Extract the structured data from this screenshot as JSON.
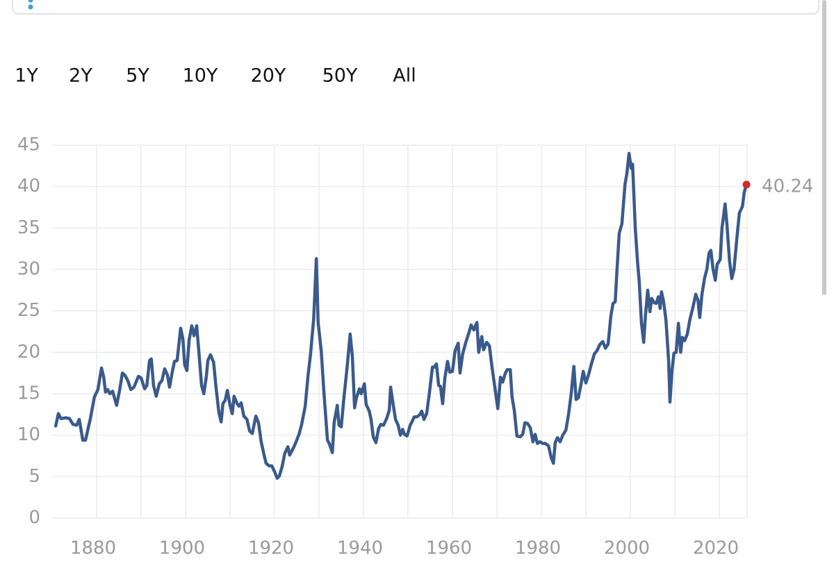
{
  "range_buttons": [
    "1Y",
    "2Y",
    "5Y",
    "10Y",
    "20Y",
    "50Y",
    "All"
  ],
  "chart_data": {
    "type": "line",
    "color": "#3a5a8c",
    "end_marker_color": "#d42a2a",
    "grid": true,
    "xlim": [
      1870,
      2026.25
    ],
    "ylim": [
      0,
      45
    ],
    "xticks": [
      1880,
      1900,
      1920,
      1940,
      1960,
      1980,
      2000,
      2020
    ],
    "x_minor_ticks": [
      1890,
      1910,
      1930,
      1950,
      1970,
      1990,
      2010
    ],
    "yticks": [
      0,
      5,
      10,
      15,
      20,
      25,
      30,
      35,
      40,
      45
    ],
    "x": [
      1870.8,
      1871.4,
      1872.0,
      1873.1,
      1873.9,
      1874.7,
      1875.5,
      1876.1,
      1876.9,
      1877.5,
      1878.6,
      1879.5,
      1880.3,
      1881.1,
      1881.6,
      1882.0,
      1882.5,
      1883.0,
      1883.6,
      1884.5,
      1885.2,
      1885.8,
      1886.4,
      1887.0,
      1887.7,
      1888.4,
      1889.4,
      1890.0,
      1890.8,
      1891.3,
      1891.9,
      1892.3,
      1892.8,
      1893.4,
      1894.1,
      1894.7,
      1895.3,
      1895.9,
      1896.4,
      1897.0,
      1897.5,
      1898.1,
      1898.9,
      1899.4,
      1899.8,
      1900.3,
      1900.8,
      1901.4,
      1901.9,
      1902.5,
      1903.0,
      1903.6,
      1904.1,
      1904.7,
      1905.0,
      1905.6,
      1906.3,
      1906.9,
      1907.5,
      1908.0,
      1908.4,
      1908.9,
      1909.4,
      1910.0,
      1910.5,
      1910.9,
      1911.6,
      1912.0,
      1912.5,
      1913.1,
      1913.8,
      1914.4,
      1915.0,
      1915.8,
      1916.4,
      1917.0,
      1917.7,
      1918.1,
      1918.8,
      1919.4,
      1920.0,
      1920.6,
      1921.1,
      1921.7,
      1922.3,
      1923.0,
      1923.4,
      1924.1,
      1924.7,
      1925.5,
      1926.1,
      1926.9,
      1927.5,
      1928.1,
      1928.8,
      1929.4,
      1929.8,
      1930.5,
      1931.1,
      1931.9,
      1932.3,
      1933.0,
      1933.4,
      1934.1,
      1934.5,
      1935.0,
      1935.6,
      1936.3,
      1937.0,
      1937.5,
      1938.0,
      1938.4,
      1939.1,
      1939.5,
      1940.2,
      1940.6,
      1941.3,
      1941.7,
      1942.2,
      1942.8,
      1943.4,
      1943.9,
      1944.5,
      1945.2,
      1945.8,
      1946.1,
      1946.7,
      1947.2,
      1947.8,
      1948.3,
      1948.8,
      1949.2,
      1949.8,
      1950.5,
      1950.9,
      1951.4,
      1952.0,
      1952.7,
      1953.1,
      1953.6,
      1954.2,
      1954.8,
      1955.5,
      1955.9,
      1956.4,
      1956.9,
      1957.3,
      1957.8,
      1958.3,
      1958.9,
      1959.4,
      1960.0,
      1960.6,
      1961.3,
      1961.7,
      1962.3,
      1963.0,
      1963.6,
      1964.2,
      1964.8,
      1965.5,
      1965.9,
      1966.6,
      1967.0,
      1967.7,
      1968.3,
      1968.9,
      1969.5,
      1970.2,
      1970.8,
      1971.3,
      1971.9,
      1972.3,
      1973.0,
      1973.4,
      1973.9,
      1974.5,
      1975.2,
      1975.8,
      1976.3,
      1976.9,
      1977.5,
      1978.1,
      1978.6,
      1979.1,
      1979.7,
      1980.3,
      1980.9,
      1981.6,
      1982.2,
      1982.7,
      1983.1,
      1983.6,
      1984.2,
      1984.8,
      1985.5,
      1986.1,
      1986.7,
      1987.3,
      1987.8,
      1988.3,
      1988.9,
      1989.4,
      1990.0,
      1990.6,
      1991.3,
      1991.9,
      1992.5,
      1993.1,
      1993.8,
      1994.4,
      1995.0,
      1995.6,
      1996.1,
      1996.6,
      1997.0,
      1997.5,
      1998.1,
      1998.8,
      1999.2,
      1999.7,
      2000.2,
      2000.5,
      2001.1,
      2001.6,
      2002.0,
      2002.5,
      2003.0,
      2003.4,
      2003.9,
      2004.4,
      2004.8,
      2005.3,
      2005.8,
      2006.3,
      2006.7,
      2007.0,
      2007.5,
      2008.0,
      2008.6,
      2008.9,
      2009.4,
      2009.8,
      2010.3,
      2010.8,
      2011.3,
      2011.7,
      2012.2,
      2012.8,
      2013.4,
      2014.1,
      2014.7,
      2015.2,
      2015.6,
      2016.1,
      2016.7,
      2017.2,
      2017.7,
      2018.1,
      2018.6,
      2019.1,
      2019.5,
      2020.2,
      2020.6,
      2021.3,
      2021.7,
      2022.3,
      2022.8,
      2023.3,
      2023.9,
      2024.5,
      2025.2,
      2025.6,
      2026.1
    ],
    "values": [
      11.1,
      12.6,
      12.0,
      12.1,
      12.0,
      11.3,
      11.2,
      11.9,
      9.4,
      9.4,
      12.0,
      14.6,
      15.5,
      18.1,
      17.0,
      15.2,
      15.5,
      15.0,
      15.3,
      13.6,
      15.5,
      17.5,
      17.2,
      16.6,
      15.5,
      15.8,
      17.1,
      16.9,
      15.6,
      16.0,
      19.0,
      19.2,
      16.0,
      14.7,
      16.2,
      16.6,
      18.0,
      17.3,
      15.8,
      17.6,
      18.9,
      19.0,
      22.9,
      21.6,
      18.5,
      17.8,
      21.5,
      23.2,
      22.0,
      23.2,
      20.0,
      16.0,
      15.0,
      17.2,
      19.0,
      19.7,
      18.8,
      15.5,
      12.7,
      11.6,
      13.8,
      14.2,
      15.4,
      13.6,
      12.6,
      14.7,
      13.8,
      13.5,
      13.9,
      12.3,
      11.9,
      10.5,
      10.2,
      12.3,
      11.5,
      9.2,
      7.5,
      6.6,
      6.3,
      6.3,
      5.6,
      4.8,
      5.1,
      6.2,
      7.8,
      8.6,
      7.6,
      8.3,
      9.0,
      10.1,
      11.3,
      13.5,
      17.0,
      19.8,
      24.0,
      31.3,
      23.6,
      20.2,
      15.2,
      9.4,
      9.0,
      7.9,
      11.5,
      13.6,
      11.2,
      11.0,
      14.5,
      18.1,
      22.2,
      19.5,
      13.3,
      14.5,
      15.6,
      15.0,
      16.2,
      13.7,
      12.9,
      11.9,
      9.8,
      9.1,
      10.8,
      11.3,
      11.2,
      12.0,
      13.0,
      15.8,
      13.6,
      11.9,
      11.2,
      10.0,
      10.7,
      10.1,
      9.9,
      11.2,
      11.6,
      12.2,
      12.2,
      12.5,
      12.9,
      11.9,
      12.6,
      15.0,
      18.2,
      18.2,
      18.6,
      16.0,
      15.9,
      13.8,
      16.9,
      18.9,
      17.6,
      17.7,
      20.2,
      21.1,
      17.5,
      19.8,
      21.2,
      22.2,
      23.3,
      22.7,
      23.6,
      20.0,
      21.9,
      20.3,
      21.2,
      20.8,
      18.2,
      15.9,
      13.2,
      17.0,
      16.4,
      17.5,
      17.9,
      17.9,
      14.6,
      13.0,
      9.9,
      9.8,
      10.1,
      11.5,
      11.4,
      10.9,
      9.2,
      10.1,
      9.0,
      9.2,
      9.0,
      9.0,
      8.7,
      7.3,
      6.6,
      9.1,
      9.7,
      9.2,
      10.0,
      10.6,
      12.5,
      15.0,
      18.3,
      14.3,
      14.5,
      16.1,
      17.7,
      16.3,
      17.3,
      18.7,
      19.8,
      20.2,
      20.9,
      21.3,
      20.5,
      21.0,
      24.3,
      25.9,
      26.1,
      30.0,
      34.4,
      35.5,
      40.3,
      41.5,
      44.0,
      42.2,
      42.7,
      35.0,
      31.0,
      28.5,
      23.5,
      21.2,
      24.5,
      27.5,
      24.9,
      26.5,
      26.0,
      25.9,
      26.7,
      25.3,
      27.3,
      26.0,
      23.9,
      19.0,
      14.0,
      18.0,
      19.9,
      20.0,
      23.5,
      20.0,
      21.8,
      21.4,
      22.2,
      24.0,
      25.5,
      27.0,
      26.3,
      24.2,
      27.0,
      29.0,
      30.0,
      32.0,
      32.3,
      30.0,
      28.7,
      30.6,
      31.2,
      35.0,
      37.9,
      35.5,
      31.0,
      28.9,
      30.0,
      33.5,
      36.8,
      37.6,
      39.3,
      40.24
    ]
  }
}
